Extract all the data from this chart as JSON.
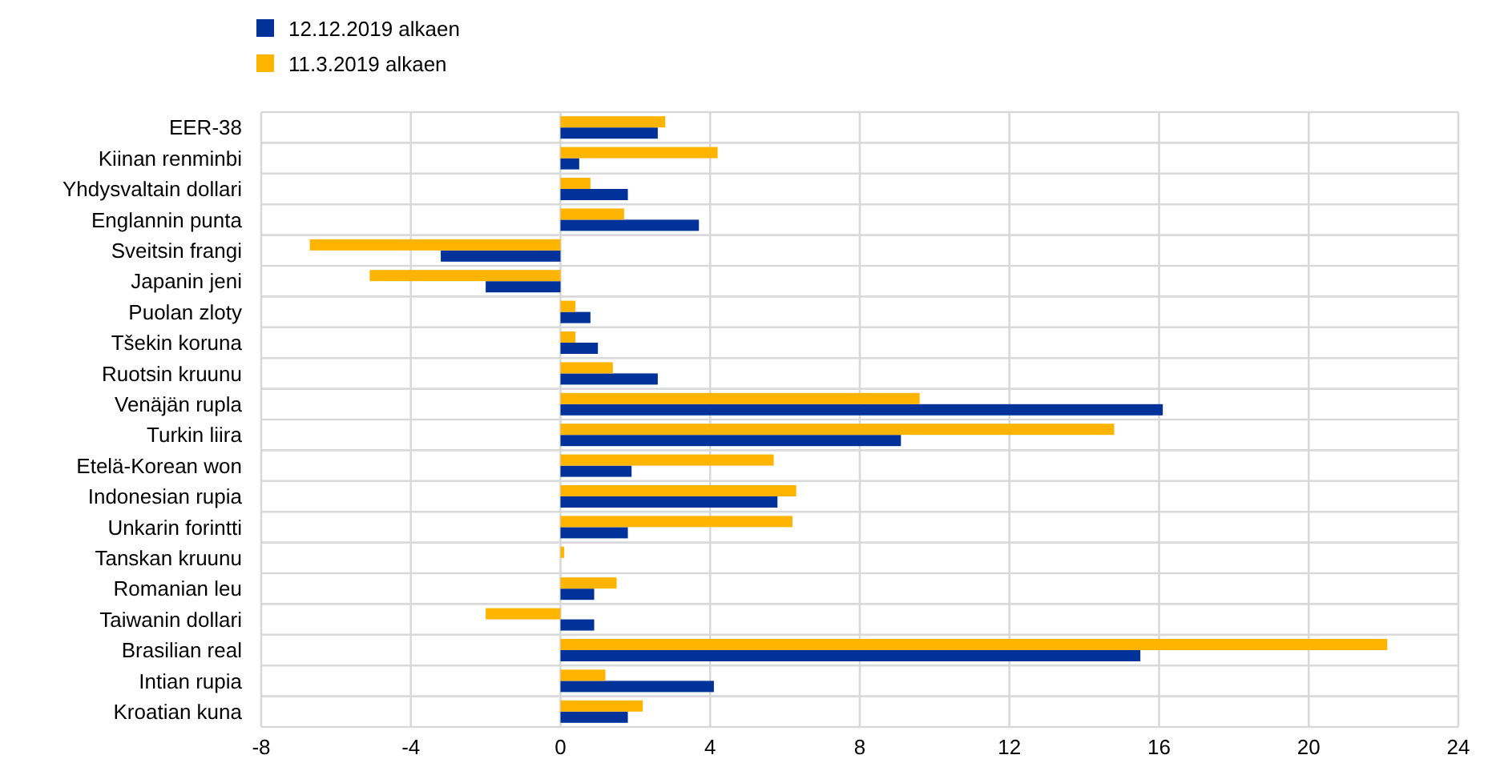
{
  "chart_data": {
    "type": "bar",
    "orientation": "horizontal",
    "categories": [
      "EER-38",
      "Kiinan renminbi",
      "Yhdysvaltain dollari",
      "Englannin punta",
      "Sveitsin frangi",
      "Japanin jeni",
      "Puolan zloty",
      "Tšekin koruna",
      "Ruotsin kruunu",
      "Venäjän rupla",
      "Turkin liira",
      "Etelä-Korean won",
      "Indonesian rupia",
      "Unkarin forintti",
      "Tanskan kruunu",
      "Romanian leu",
      "Taiwanin dollari",
      "Brasilian real",
      "Intian rupia",
      "Kroatian kuna"
    ],
    "series": [
      {
        "name": "12.12.2019 alkaen",
        "color": "#003299",
        "values": [
          2.6,
          0.5,
          1.8,
          3.7,
          -3.2,
          -2.0,
          0.8,
          1.0,
          2.6,
          16.1,
          9.1,
          1.9,
          5.8,
          1.8,
          0.0,
          0.9,
          0.9,
          15.5,
          4.1,
          1.8
        ]
      },
      {
        "name": "11.3.2019 alkaen",
        "color": "#ffb400",
        "values": [
          2.8,
          4.2,
          0.8,
          1.7,
          -6.7,
          -5.1,
          0.4,
          0.4,
          1.4,
          9.6,
          14.8,
          5.7,
          6.3,
          6.2,
          0.1,
          1.5,
          -2.0,
          22.1,
          1.2,
          2.2
        ]
      }
    ],
    "xlim": [
      -8,
      24
    ],
    "xticks": [
      -8,
      -4,
      0,
      4,
      8,
      12,
      16,
      20,
      24
    ],
    "grid": true,
    "legend": "top left"
  }
}
